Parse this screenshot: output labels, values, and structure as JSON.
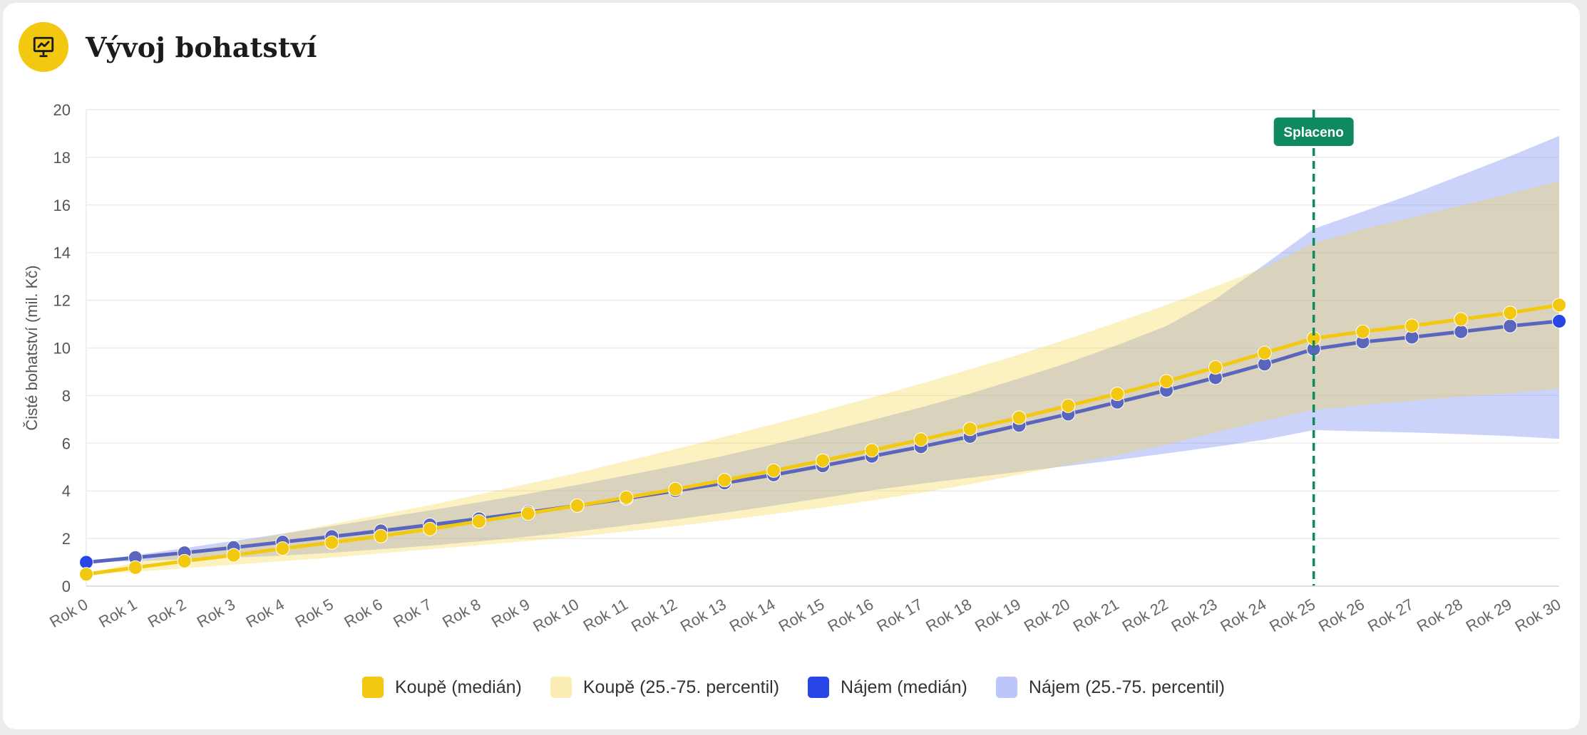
{
  "header": {
    "title": "Vývoj bohatství",
    "icon": "presentation-chart-icon"
  },
  "colors": {
    "accent": "#f2c811",
    "buy_line": "#f2c811",
    "buy_band": "rgba(245,212,60,0.32)",
    "rent_line": "#5a65bd",
    "rent_dot": "#2846e8",
    "rent_band": "rgba(120,140,245,0.38)",
    "marker": "#0f8a5f"
  },
  "chart_data": {
    "type": "line",
    "ylabel": "Čisté bohatství (mil. Kč)",
    "xlabel": "",
    "ylim": [
      0,
      20
    ],
    "yticks": [
      0,
      2,
      4,
      6,
      8,
      10,
      12,
      14,
      16,
      18,
      20
    ],
    "grid": true,
    "categories": [
      "Rok 0",
      "Rok 1",
      "Rok 2",
      "Rok 3",
      "Rok 4",
      "Rok 5",
      "Rok 6",
      "Rok 7",
      "Rok 8",
      "Rok 9",
      "Rok 10",
      "Rok 11",
      "Rok 12",
      "Rok 13",
      "Rok 14",
      "Rok 15",
      "Rok 16",
      "Rok 17",
      "Rok 18",
      "Rok 19",
      "Rok 20",
      "Rok 21",
      "Rok 22",
      "Rok 23",
      "Rok 24",
      "Rok 25",
      "Rok 26",
      "Rok 27",
      "Rok 28",
      "Rok 29",
      "Rok 30"
    ],
    "series": [
      {
        "name": "Koupě (medián)",
        "kind": "line",
        "values": [
          0.5,
          0.78,
          1.05,
          1.3,
          1.58,
          1.83,
          2.1,
          2.4,
          2.72,
          3.05,
          3.38,
          3.72,
          4.07,
          4.45,
          4.85,
          5.27,
          5.7,
          6.15,
          6.6,
          7.07,
          7.57,
          8.07,
          8.6,
          9.18,
          9.79,
          10.4,
          10.68,
          10.93,
          11.2,
          11.47,
          11.8
        ]
      },
      {
        "name": "Koupě (25.-75. percentil)",
        "kind": "band",
        "low": [
          0.5,
          0.6,
          0.75,
          0.9,
          1.05,
          1.2,
          1.38,
          1.55,
          1.72,
          1.9,
          2.08,
          2.3,
          2.52,
          2.77,
          3.03,
          3.3,
          3.6,
          3.92,
          4.28,
          4.68,
          5.1,
          5.5,
          5.95,
          6.45,
          6.95,
          7.4,
          7.6,
          7.78,
          7.95,
          8.1,
          8.3
        ],
        "high": [
          0.5,
          1.0,
          1.4,
          1.8,
          2.2,
          2.6,
          3.0,
          3.4,
          3.85,
          4.3,
          4.75,
          5.25,
          5.75,
          6.27,
          6.8,
          7.35,
          7.92,
          8.5,
          9.1,
          9.72,
          10.38,
          11.08,
          11.8,
          12.58,
          13.38,
          14.4,
          14.98,
          15.48,
          15.98,
          16.48,
          17.0
        ]
      },
      {
        "name": "Nájem (medián)",
        "kind": "line",
        "values": [
          1.0,
          1.2,
          1.4,
          1.62,
          1.85,
          2.08,
          2.32,
          2.57,
          2.83,
          3.1,
          3.38,
          3.68,
          4.0,
          4.33,
          4.67,
          5.05,
          5.45,
          5.85,
          6.28,
          6.75,
          7.22,
          7.72,
          8.22,
          8.75,
          9.32,
          9.95,
          10.25,
          10.45,
          10.68,
          10.92,
          11.12
        ]
      },
      {
        "name": "Nájem (25.-75. percentil)",
        "kind": "band",
        "low": [
          1.0,
          1.05,
          1.12,
          1.2,
          1.28,
          1.4,
          1.55,
          1.7,
          1.88,
          2.08,
          2.3,
          2.55,
          2.8,
          3.08,
          3.38,
          3.7,
          4.02,
          4.3,
          4.55,
          4.8,
          5.05,
          5.3,
          5.57,
          5.85,
          6.15,
          6.55,
          6.5,
          6.45,
          6.38,
          6.3,
          6.18
        ],
        "high": [
          1.0,
          1.3,
          1.6,
          1.9,
          2.2,
          2.52,
          2.85,
          3.18,
          3.52,
          3.88,
          4.25,
          4.65,
          5.05,
          5.48,
          5.95,
          6.45,
          6.97,
          7.5,
          8.08,
          8.72,
          9.38,
          10.12,
          10.92,
          12.05,
          13.5,
          15.0,
          15.72,
          16.45,
          17.25,
          18.05,
          18.9
        ]
      }
    ],
    "annotations": [
      {
        "type": "vertical_line",
        "x": "Rok 25",
        "label": "Splaceno",
        "style": "dashed"
      }
    ],
    "legend": {
      "placement": "bottom"
    }
  },
  "legend": {
    "items": [
      {
        "label": "Koupě (medián)",
        "color": "#f2c811"
      },
      {
        "label": "Koupě (25.-75. percentil)",
        "color": "#fbedb4"
      },
      {
        "label": "Nájem (medián)",
        "color": "#2846e8"
      },
      {
        "label": "Nájem (25.-75. percentil)",
        "color": "#bcc6fb"
      }
    ]
  }
}
